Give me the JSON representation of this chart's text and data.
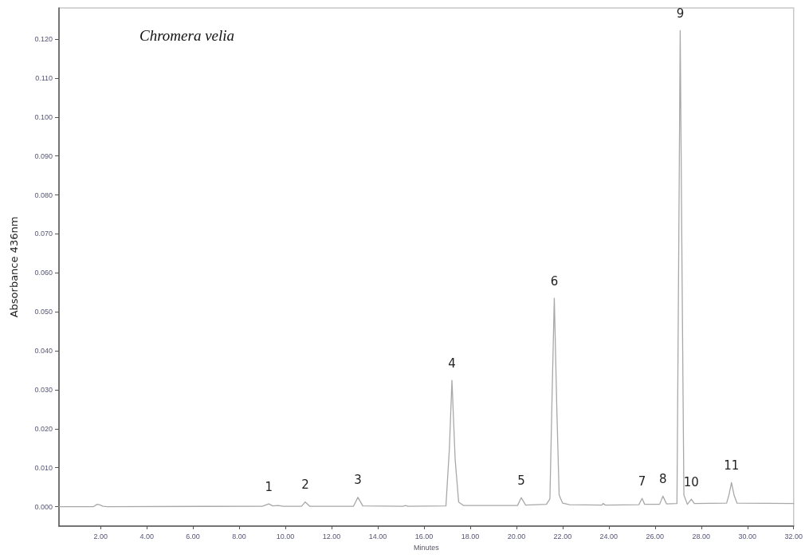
{
  "chart_data": {
    "type": "line",
    "title": "Chromera velia",
    "xlabel": "Minutes",
    "ylabel": "Absorbance 436nm",
    "x": [
      0.2,
      1.7,
      1.85,
      1.95,
      2.1,
      2.3,
      9.0,
      9.28,
      9.45,
      9.7,
      9.9,
      10.7,
      10.86,
      11.05,
      12.95,
      13.14,
      13.35,
      15.1,
      15.2,
      15.3,
      16.95,
      17.1,
      17.21,
      17.35,
      17.5,
      17.7,
      20.05,
      20.21,
      20.4,
      21.3,
      21.45,
      21.55,
      21.64,
      21.75,
      21.85,
      22.0,
      22.3,
      23.7,
      23.75,
      23.85,
      25.3,
      25.44,
      25.55,
      26.2,
      26.34,
      26.5,
      26.95,
      27.02,
      27.09,
      27.17,
      27.25,
      27.4,
      27.57,
      27.7,
      29.1,
      29.2,
      29.31,
      29.42,
      29.55,
      32
    ],
    "series": [
      {
        "color": "#a8a8a8",
        "values": [
          0,
          0,
          0.0006,
          0.0005,
          0.0001,
          0,
          0.0001,
          0.0007,
          0.0002,
          0.0003,
          0.0001,
          0.0001,
          0.0012,
          0.0001,
          0.0001,
          0.0024,
          0.0002,
          0.0001,
          0.0003,
          0.0001,
          0.0002,
          0.015,
          0.0324,
          0.012,
          0.0012,
          0.0003,
          0.0003,
          0.0023,
          0.0004,
          0.0006,
          0.002,
          0.03,
          0.0535,
          0.025,
          0.003,
          0.0009,
          0.0005,
          0.0004,
          0.0008,
          0.0004,
          0.0005,
          0.0021,
          0.0006,
          0.0006,
          0.0027,
          0.0007,
          0.0008,
          0.06,
          0.1222,
          0.06,
          0.003,
          0.0006,
          0.0019,
          0.0008,
          0.0009,
          0.003,
          0.0062,
          0.003,
          0.0009,
          0.0008
        ]
      }
    ],
    "annotations": [
      {
        "text": "1",
        "x": 9.28,
        "y": 0.0007
      },
      {
        "text": "2",
        "x": 10.86,
        "y": 0.0012
      },
      {
        "text": "3",
        "x": 13.14,
        "y": 0.0024
      },
      {
        "text": "4",
        "x": 17.21,
        "y": 0.0324
      },
      {
        "text": "5",
        "x": 20.21,
        "y": 0.0023
      },
      {
        "text": "6",
        "x": 21.64,
        "y": 0.0535
      },
      {
        "text": "7",
        "x": 25.44,
        "y": 0.0021
      },
      {
        "text": "8",
        "x": 26.34,
        "y": 0.0027
      },
      {
        "text": "9",
        "x": 27.09,
        "y": 0.1222
      },
      {
        "text": "10",
        "x": 27.57,
        "y": 0.0019
      },
      {
        "text": "11",
        "x": 29.31,
        "y": 0.0062
      }
    ],
    "xlim": [
      0.2,
      32
    ],
    "ylim": [
      -0.005,
      0.128
    ],
    "xticks": [
      {
        "value": 2,
        "label": "2.00"
      },
      {
        "value": 4,
        "label": "4.00"
      },
      {
        "value": 6,
        "label": "6.00"
      },
      {
        "value": 8,
        "label": "8.00"
      },
      {
        "value": 10,
        "label": "10.00"
      },
      {
        "value": 12,
        "label": "12.00"
      },
      {
        "value": 14,
        "label": "14.00"
      },
      {
        "value": 16,
        "label": "16.00"
      },
      {
        "value": 18,
        "label": "18.00"
      },
      {
        "value": 20,
        "label": "20.00"
      },
      {
        "value": 22,
        "label": "22.00"
      },
      {
        "value": 24,
        "label": "24.00"
      },
      {
        "value": 26,
        "label": "26.00"
      },
      {
        "value": 28,
        "label": "28.00"
      },
      {
        "value": 30,
        "label": "30.00"
      },
      {
        "value": 32,
        "label": "32.00"
      }
    ],
    "yticks": [
      {
        "value": 0,
        "label": "0.000"
      },
      {
        "value": 0.01,
        "label": "0.010"
      },
      {
        "value": 0.02,
        "label": "0.020"
      },
      {
        "value": 0.03,
        "label": "0.030"
      },
      {
        "value": 0.04,
        "label": "0.040"
      },
      {
        "value": 0.05,
        "label": "0.050"
      },
      {
        "value": 0.06,
        "label": "0.060"
      },
      {
        "value": 0.07,
        "label": "0.070"
      },
      {
        "value": 0.08,
        "label": "0.080"
      },
      {
        "value": 0.09,
        "label": "0.090"
      },
      {
        "value": 0.1,
        "label": "0.100"
      },
      {
        "value": 0.11,
        "label": "0.110"
      },
      {
        "value": 0.12,
        "label": "0.120"
      }
    ],
    "grid": false,
    "marker": "none",
    "line_style": "solid"
  }
}
